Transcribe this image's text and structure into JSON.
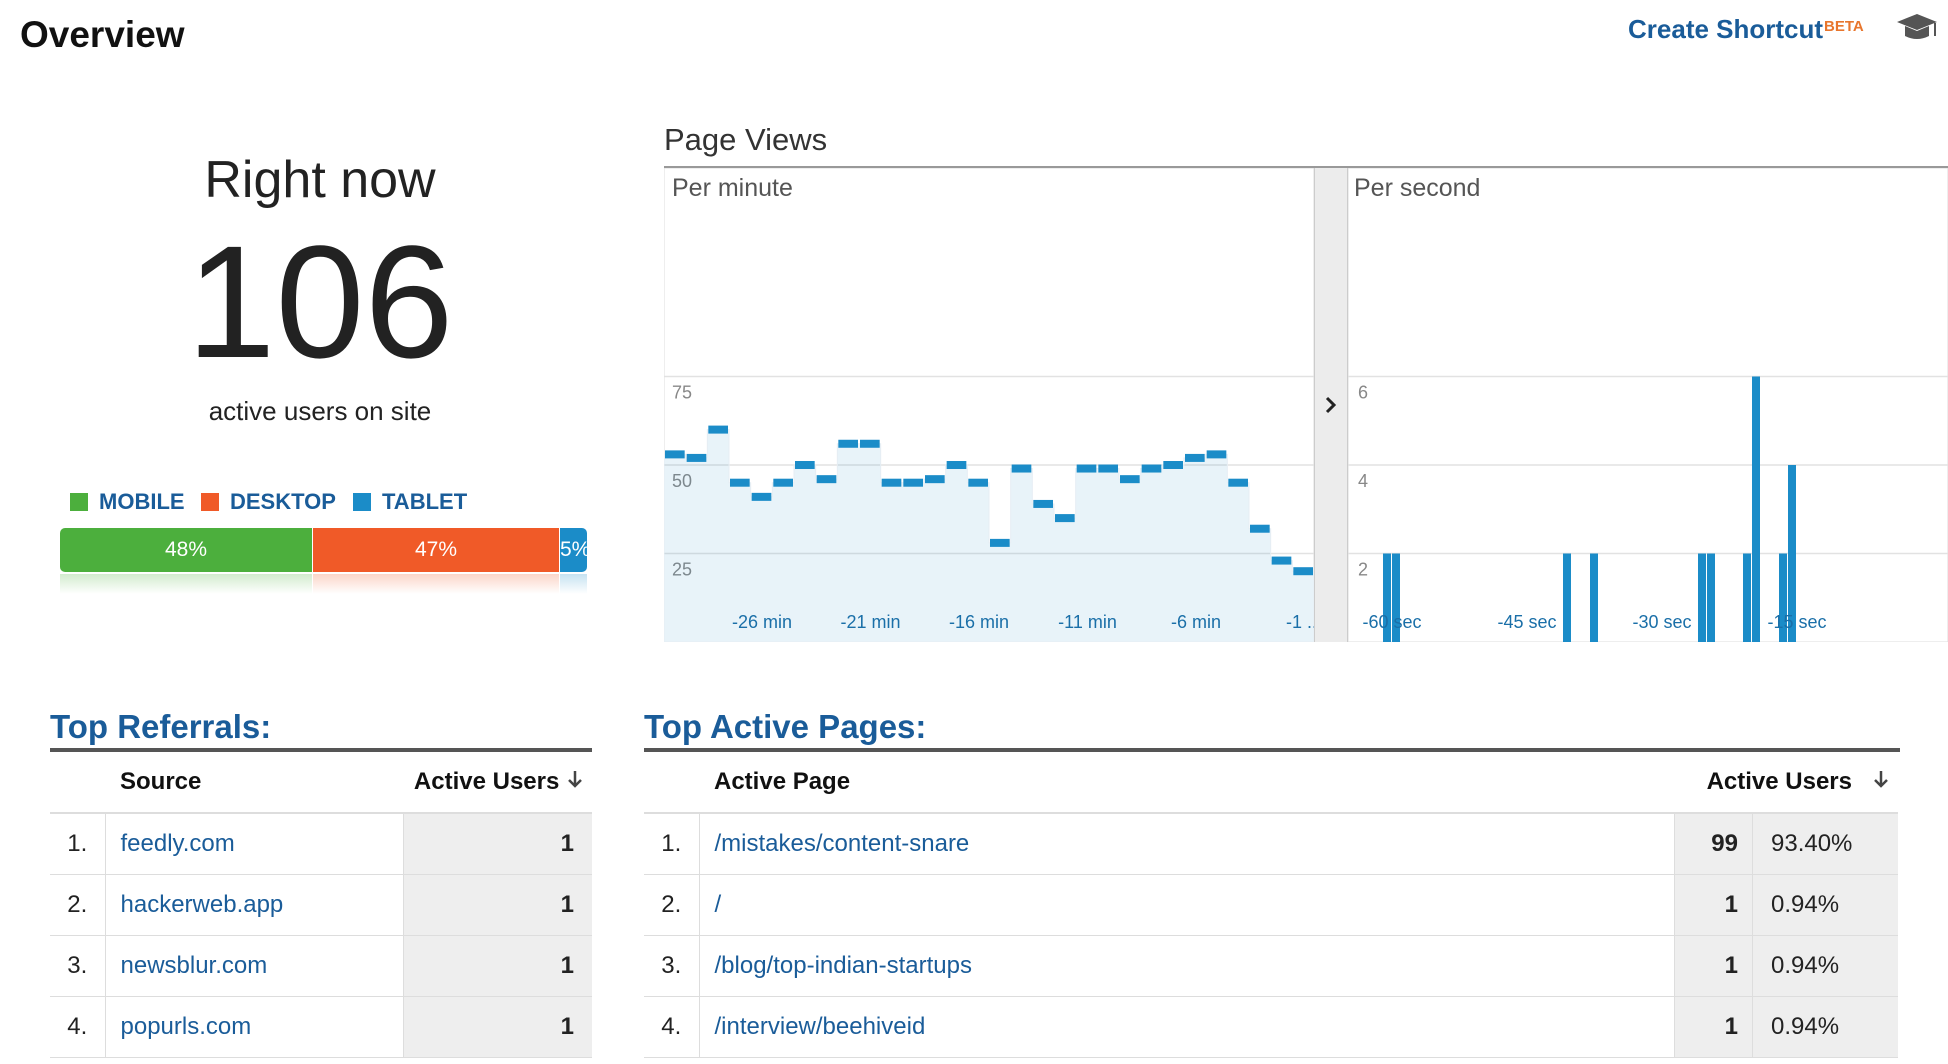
{
  "header": {
    "title": "Overview",
    "shortcut_label": "Create Shortcut",
    "beta_label": "BETA",
    "help_icon": "graduation-cap-icon"
  },
  "right_now": {
    "label": "Right now",
    "count": "106",
    "subtitle": "active users on site"
  },
  "devices": {
    "legend": [
      {
        "label": "MOBILE",
        "color": "#4caf3d"
      },
      {
        "label": "DESKTOP",
        "color": "#f05a28"
      },
      {
        "label": "TABLET",
        "color": "#1b8cc8"
      }
    ],
    "segments": [
      {
        "name": "MOBILE",
        "percent": 48,
        "label": "48%"
      },
      {
        "name": "DESKTOP",
        "percent": 47,
        "label": "47%"
      },
      {
        "name": "TABLET",
        "percent": 5,
        "label": "5%"
      }
    ]
  },
  "page_views": {
    "title": "Page Views",
    "per_minute_label": "Per minute",
    "per_second_label": "Per second",
    "expand_icon": "chevron-right-icon"
  },
  "chart_data": [
    {
      "type": "area",
      "title": "Per minute",
      "ylim": [
        0,
        100
      ],
      "yticks": [
        25,
        50,
        75
      ],
      "xtick_labels": [
        "-26 min",
        "-21 min",
        "-16 min",
        "-11 min",
        "-6 min",
        "-1 ..."
      ],
      "series_color": "#1b8cc8",
      "values": [
        53,
        52,
        60,
        45,
        41,
        45,
        50,
        46,
        56,
        56,
        45,
        45,
        46,
        50,
        45,
        28,
        49,
        39,
        35,
        49,
        49,
        46,
        49,
        50,
        52,
        53,
        45,
        32,
        23,
        20
      ]
    },
    {
      "type": "bar",
      "title": "Per second",
      "ylim": [
        0,
        8
      ],
      "yticks": [
        2,
        4,
        6
      ],
      "xtick_labels": [
        "-60 sec",
        "-45 sec",
        "-30 sec",
        "-15 sec"
      ],
      "series_color": "#1b8cc8",
      "x": [
        -59,
        -58,
        -39,
        -36,
        -24,
        -23,
        -19,
        -18,
        -15,
        -14
      ],
      "values": [
        2,
        2,
        2,
        2,
        2,
        2,
        2,
        6,
        2,
        4
      ]
    }
  ],
  "referrals": {
    "title": "Top Referrals:",
    "col_source": "Source",
    "col_users": "Active Users",
    "sort_icon": "arrow-down-icon",
    "rows": [
      {
        "index": "1.",
        "source": "feedly.com",
        "users": "1"
      },
      {
        "index": "2.",
        "source": "hackerweb.app",
        "users": "1"
      },
      {
        "index": "3.",
        "source": "newsblur.com",
        "users": "1"
      },
      {
        "index": "4.",
        "source": "popurls.com",
        "users": "1"
      }
    ]
  },
  "pages": {
    "title": "Top Active Pages:",
    "col_page": "Active Page",
    "col_users": "Active Users",
    "sort_icon": "arrow-down-icon",
    "rows": [
      {
        "index": "1.",
        "page": "/mistakes/content-snare",
        "users": "99",
        "percent": "93.40%"
      },
      {
        "index": "2.",
        "page": "/",
        "users": "1",
        "percent": "0.94%"
      },
      {
        "index": "3.",
        "page": "/blog/top-indian-startups",
        "users": "1",
        "percent": "0.94%"
      },
      {
        "index": "4.",
        "page": "/interview/beehiveid",
        "users": "1",
        "percent": "0.94%"
      }
    ]
  }
}
